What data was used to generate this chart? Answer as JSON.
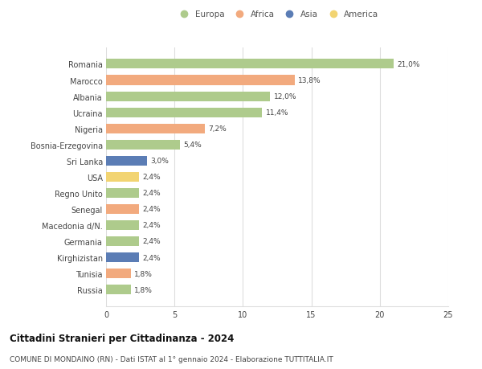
{
  "countries": [
    "Romania",
    "Marocco",
    "Albania",
    "Ucraina",
    "Nigeria",
    "Bosnia-Erzegovina",
    "Sri Lanka",
    "USA",
    "Regno Unito",
    "Senegal",
    "Macedonia d/N.",
    "Germania",
    "Kirghizistan",
    "Tunisia",
    "Russia"
  ],
  "values": [
    21.0,
    13.8,
    12.0,
    11.4,
    7.2,
    5.4,
    3.0,
    2.4,
    2.4,
    2.4,
    2.4,
    2.4,
    2.4,
    1.8,
    1.8
  ],
  "labels": [
    "21,0%",
    "13,8%",
    "12,0%",
    "11,4%",
    "7,2%",
    "5,4%",
    "3,0%",
    "2,4%",
    "2,4%",
    "2,4%",
    "2,4%",
    "2,4%",
    "2,4%",
    "1,8%",
    "1,8%"
  ],
  "continents": [
    "Europa",
    "Africa",
    "Europa",
    "Europa",
    "Africa",
    "Europa",
    "Asia",
    "America",
    "Europa",
    "Africa",
    "Europa",
    "Europa",
    "Asia",
    "Africa",
    "Europa"
  ],
  "colors": {
    "Europa": "#aecb8c",
    "Africa": "#f2aa7e",
    "Asia": "#5b7db5",
    "America": "#f2d472"
  },
  "legend_order": [
    "Europa",
    "Africa",
    "Asia",
    "America"
  ],
  "title": "Cittadini Stranieri per Cittadinanza - 2024",
  "subtitle": "COMUNE DI MONDAINO (RN) - Dati ISTAT al 1° gennaio 2024 - Elaborazione TUTTITALIA.IT",
  "xlim": [
    0,
    25
  ],
  "xticks": [
    0,
    5,
    10,
    15,
    20,
    25
  ],
  "background_color": "#ffffff",
  "grid_color": "#dddddd"
}
